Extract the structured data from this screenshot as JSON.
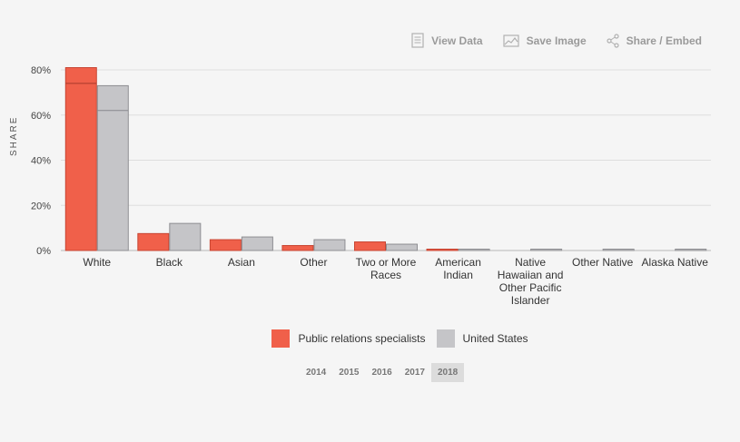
{
  "toolbar": {
    "view_data": "View Data",
    "save_image": "Save Image",
    "share_embed": "Share / Embed"
  },
  "chart_data": {
    "type": "bar",
    "ylabel": "SHARE",
    "ylim": [
      0,
      0.8
    ],
    "yticks": [
      "0%",
      "20%",
      "40%",
      "60%",
      "80%"
    ],
    "categories": [
      "White",
      "Black",
      "Asian",
      "Other",
      "Two or More Races",
      "American Indian",
      "Native Hawaiian and Other Pacific Islander",
      "Other Native",
      "Alaska Native"
    ],
    "series": [
      {
        "name": "Public relations specialists",
        "color": "#f0604a",
        "values": [
          0.81,
          0.075,
          0.048,
          0.022,
          0.038,
          0.006,
          0,
          0,
          0
        ],
        "secondary": [
          0.74,
          0.07,
          0.045,
          0.02,
          0.032,
          0.004,
          0,
          0,
          0
        ]
      },
      {
        "name": "United States",
        "color": "#c5c5c8",
        "values": [
          0.73,
          0.12,
          0.06,
          0.048,
          0.028,
          0.006,
          0.002,
          0.001,
          0.001
        ],
        "secondary": [
          0.62,
          0.117,
          0.058,
          0.046,
          0.022,
          0.005,
          0.002,
          0.001,
          0.001
        ]
      }
    ],
    "grid": true,
    "legend": "bottom"
  },
  "legend": {
    "items": [
      {
        "label": "Public relations specialists",
        "color": "#f0604a"
      },
      {
        "label": "United States",
        "color": "#c5c5c8"
      }
    ]
  },
  "years": {
    "items": [
      "2014",
      "2015",
      "2016",
      "2017",
      "2018"
    ],
    "selected": "2018"
  }
}
